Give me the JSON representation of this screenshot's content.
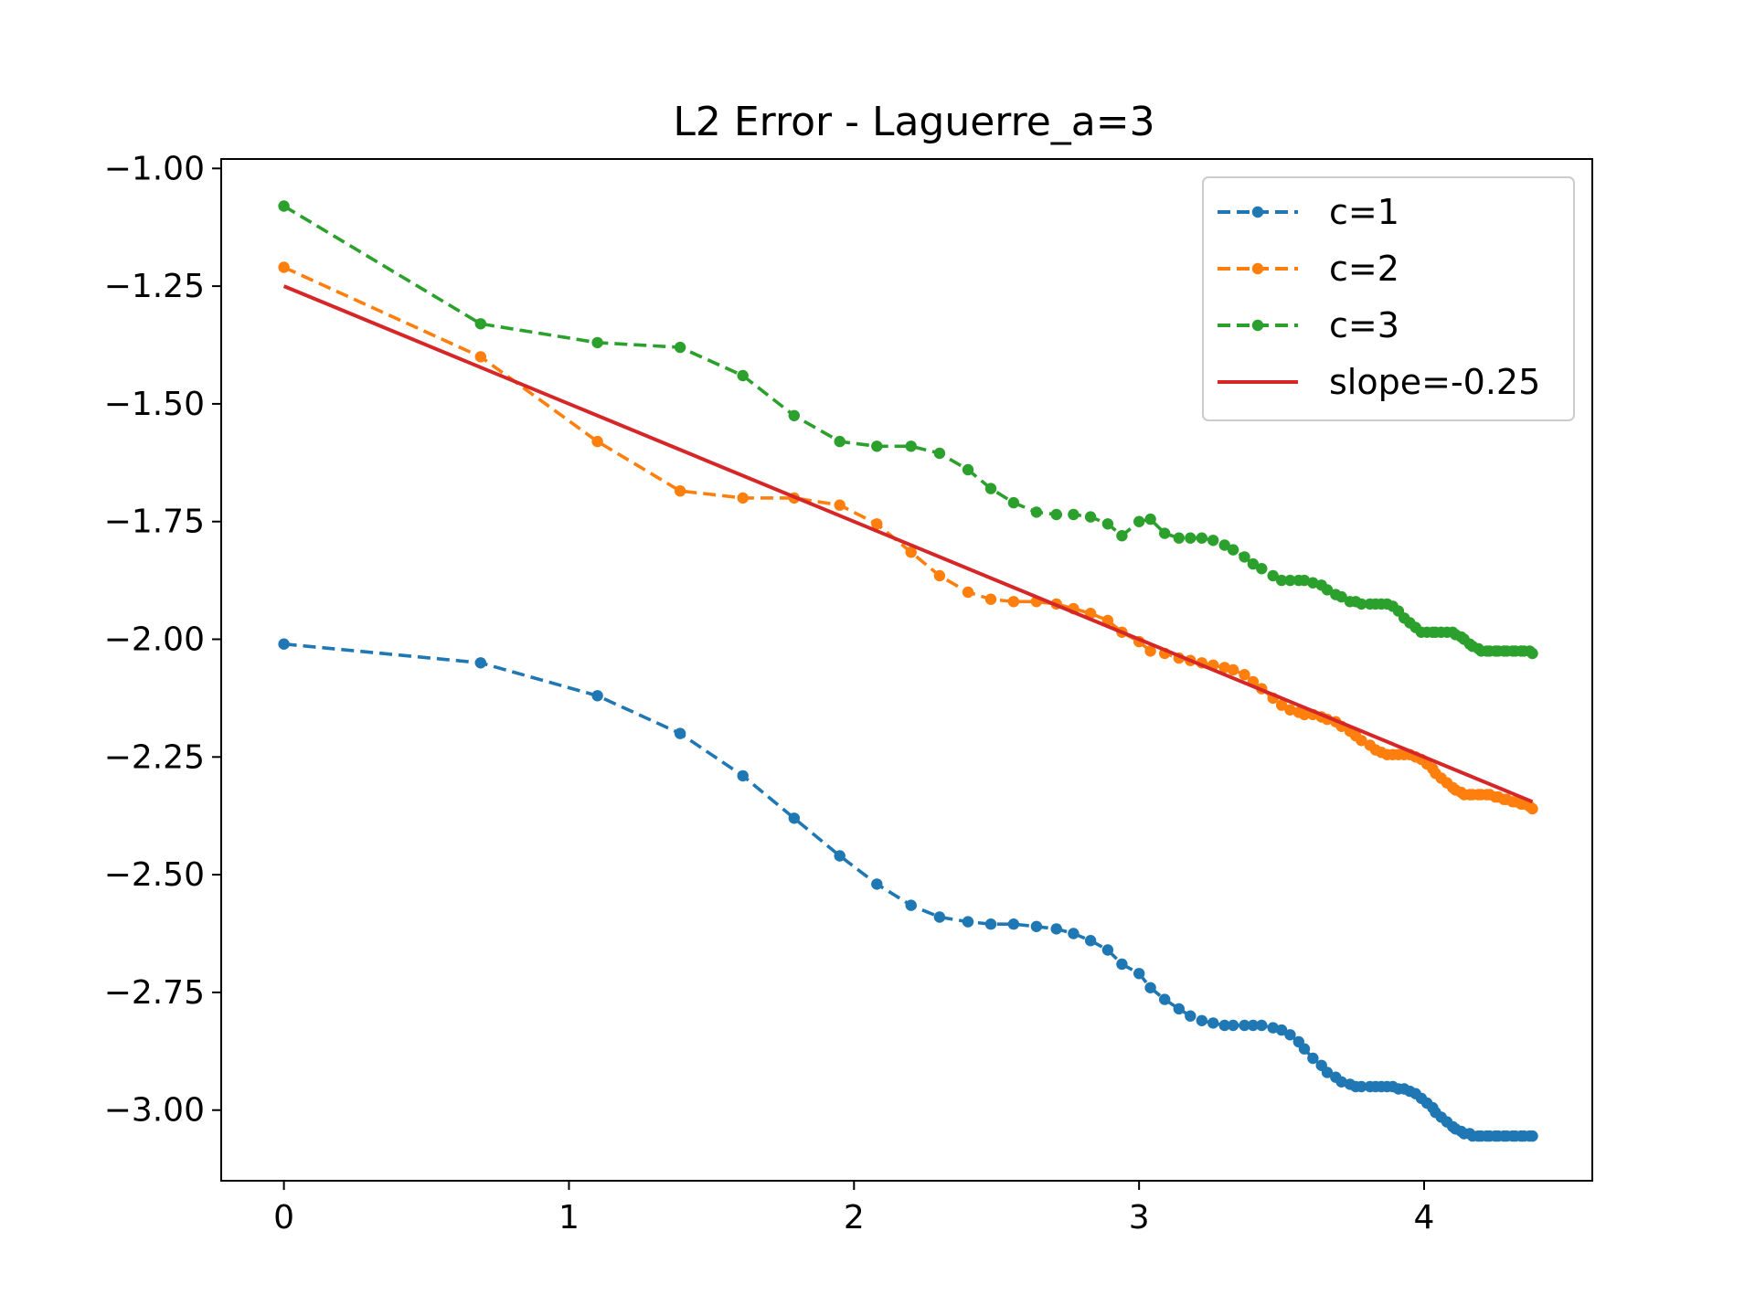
{
  "chart_data": {
    "type": "line",
    "title": "L2 Error - Laguerre_a=3",
    "xlabel": "",
    "ylabel": "",
    "xlim": [
      -0.22,
      4.59
    ],
    "ylim": [
      -3.15,
      -0.98
    ],
    "x_ticks": [
      0,
      1,
      2,
      3,
      4
    ],
    "x_tick_labels": [
      "0",
      "1",
      "2",
      "3",
      "4"
    ],
    "y_ticks": [
      -1.0,
      -1.25,
      -1.5,
      -1.75,
      -2.0,
      -2.25,
      -2.5,
      -2.75,
      -3.0
    ],
    "y_tick_labels": [
      "−1.00",
      "−1.25",
      "−1.50",
      "−1.75",
      "−2.00",
      "−2.25",
      "−2.50",
      "−2.75",
      "−3.00"
    ],
    "grid": false,
    "legend_position": "top-right",
    "series": [
      {
        "name": "c=1",
        "color": "#1f77b4",
        "style": "dashed-with-dots",
        "points": [
          [
            0.0,
            -2.01
          ],
          [
            0.69,
            -2.05
          ],
          [
            1.1,
            -2.12
          ],
          [
            1.39,
            -2.2
          ],
          [
            1.61,
            -2.29
          ],
          [
            1.79,
            -2.38
          ],
          [
            1.95,
            -2.46
          ],
          [
            2.08,
            -2.52
          ],
          [
            2.2,
            -2.565
          ],
          [
            2.3,
            -2.59
          ],
          [
            2.4,
            -2.6
          ],
          [
            2.48,
            -2.605
          ],
          [
            2.56,
            -2.605
          ],
          [
            2.64,
            -2.61
          ],
          [
            2.71,
            -2.615
          ],
          [
            2.77,
            -2.625
          ],
          [
            2.83,
            -2.64
          ],
          [
            2.89,
            -2.66
          ],
          [
            2.94,
            -2.69
          ],
          [
            3.0,
            -2.71
          ],
          [
            3.04,
            -2.74
          ],
          [
            3.09,
            -2.765
          ],
          [
            3.14,
            -2.785
          ],
          [
            3.18,
            -2.8
          ],
          [
            3.22,
            -2.81
          ],
          [
            3.26,
            -2.815
          ],
          [
            3.3,
            -2.82
          ],
          [
            3.33,
            -2.82
          ],
          [
            3.37,
            -2.82
          ],
          [
            3.4,
            -2.82
          ],
          [
            3.43,
            -2.82
          ],
          [
            3.47,
            -2.825
          ],
          [
            3.5,
            -2.83
          ],
          [
            3.53,
            -2.84
          ],
          [
            3.56,
            -2.855
          ],
          [
            3.58,
            -2.87
          ],
          [
            3.61,
            -2.89
          ],
          [
            3.64,
            -2.905
          ],
          [
            3.66,
            -2.92
          ],
          [
            3.69,
            -2.93
          ],
          [
            3.71,
            -2.94
          ],
          [
            3.74,
            -2.945
          ],
          [
            3.76,
            -2.95
          ],
          [
            3.78,
            -2.95
          ],
          [
            3.81,
            -2.95
          ],
          [
            3.83,
            -2.95
          ],
          [
            3.85,
            -2.95
          ],
          [
            3.87,
            -2.95
          ],
          [
            3.89,
            -2.95
          ],
          [
            3.91,
            -2.955
          ],
          [
            3.93,
            -2.955
          ],
          [
            3.95,
            -2.96
          ],
          [
            3.97,
            -2.965
          ],
          [
            3.99,
            -2.975
          ],
          [
            4.01,
            -2.985
          ],
          [
            4.03,
            -2.995
          ],
          [
            4.04,
            -3.005
          ],
          [
            4.06,
            -3.015
          ],
          [
            4.08,
            -3.025
          ],
          [
            4.1,
            -3.035
          ],
          [
            4.11,
            -3.04
          ],
          [
            4.13,
            -3.045
          ],
          [
            4.14,
            -3.05
          ],
          [
            4.16,
            -3.05
          ],
          [
            4.17,
            -3.055
          ],
          [
            4.19,
            -3.055
          ],
          [
            4.2,
            -3.055
          ],
          [
            4.22,
            -3.055
          ],
          [
            4.23,
            -3.055
          ],
          [
            4.25,
            -3.055
          ],
          [
            4.26,
            -3.055
          ],
          [
            4.28,
            -3.055
          ],
          [
            4.29,
            -3.055
          ],
          [
            4.31,
            -3.055
          ],
          [
            4.32,
            -3.055
          ],
          [
            4.34,
            -3.055
          ],
          [
            4.35,
            -3.055
          ],
          [
            4.37,
            -3.055
          ],
          [
            4.38,
            -3.055
          ]
        ]
      },
      {
        "name": "c=2",
        "color": "#ff7f0e",
        "style": "dashed-with-dots",
        "points": [
          [
            0.0,
            -1.21
          ],
          [
            0.69,
            -1.4
          ],
          [
            1.1,
            -1.58
          ],
          [
            1.39,
            -1.685
          ],
          [
            1.61,
            -1.7
          ],
          [
            1.79,
            -1.7
          ],
          [
            1.95,
            -1.715
          ],
          [
            2.08,
            -1.755
          ],
          [
            2.2,
            -1.815
          ],
          [
            2.3,
            -1.865
          ],
          [
            2.4,
            -1.9
          ],
          [
            2.48,
            -1.915
          ],
          [
            2.56,
            -1.92
          ],
          [
            2.64,
            -1.92
          ],
          [
            2.71,
            -1.925
          ],
          [
            2.77,
            -1.935
          ],
          [
            2.83,
            -1.945
          ],
          [
            2.89,
            -1.96
          ],
          [
            2.94,
            -1.985
          ],
          [
            3.0,
            -2.005
          ],
          [
            3.04,
            -2.025
          ],
          [
            3.09,
            -2.03
          ],
          [
            3.14,
            -2.04
          ],
          [
            3.18,
            -2.045
          ],
          [
            3.22,
            -2.05
          ],
          [
            3.26,
            -2.055
          ],
          [
            3.3,
            -2.06
          ],
          [
            3.33,
            -2.065
          ],
          [
            3.37,
            -2.075
          ],
          [
            3.4,
            -2.09
          ],
          [
            3.43,
            -2.105
          ],
          [
            3.47,
            -2.125
          ],
          [
            3.5,
            -2.14
          ],
          [
            3.53,
            -2.15
          ],
          [
            3.56,
            -2.155
          ],
          [
            3.58,
            -2.16
          ],
          [
            3.61,
            -2.16
          ],
          [
            3.64,
            -2.165
          ],
          [
            3.66,
            -2.17
          ],
          [
            3.69,
            -2.175
          ],
          [
            3.71,
            -2.185
          ],
          [
            3.74,
            -2.195
          ],
          [
            3.76,
            -2.205
          ],
          [
            3.78,
            -2.215
          ],
          [
            3.81,
            -2.225
          ],
          [
            3.83,
            -2.235
          ],
          [
            3.85,
            -2.24
          ],
          [
            3.87,
            -2.245
          ],
          [
            3.89,
            -2.245
          ],
          [
            3.91,
            -2.245
          ],
          [
            3.93,
            -2.245
          ],
          [
            3.95,
            -2.245
          ],
          [
            3.97,
            -2.25
          ],
          [
            3.99,
            -2.255
          ],
          [
            4.01,
            -2.265
          ],
          [
            4.03,
            -2.275
          ],
          [
            4.04,
            -2.285
          ],
          [
            4.06,
            -2.295
          ],
          [
            4.08,
            -2.305
          ],
          [
            4.1,
            -2.315
          ],
          [
            4.11,
            -2.32
          ],
          [
            4.13,
            -2.325
          ],
          [
            4.14,
            -2.33
          ],
          [
            4.16,
            -2.33
          ],
          [
            4.17,
            -2.33
          ],
          [
            4.19,
            -2.33
          ],
          [
            4.2,
            -2.33
          ],
          [
            4.22,
            -2.33
          ],
          [
            4.23,
            -2.33
          ],
          [
            4.25,
            -2.335
          ],
          [
            4.26,
            -2.335
          ],
          [
            4.28,
            -2.34
          ],
          [
            4.29,
            -2.34
          ],
          [
            4.31,
            -2.345
          ],
          [
            4.32,
            -2.345
          ],
          [
            4.34,
            -2.35
          ],
          [
            4.35,
            -2.35
          ],
          [
            4.37,
            -2.355
          ],
          [
            4.38,
            -2.36
          ]
        ]
      },
      {
        "name": "c=3",
        "color": "#2ca02c",
        "style": "dashed-with-dots",
        "points": [
          [
            0.0,
            -1.08
          ],
          [
            0.69,
            -1.33
          ],
          [
            1.1,
            -1.37
          ],
          [
            1.39,
            -1.38
          ],
          [
            1.61,
            -1.44
          ],
          [
            1.79,
            -1.525
          ],
          [
            1.95,
            -1.58
          ],
          [
            2.08,
            -1.59
          ],
          [
            2.2,
            -1.59
          ],
          [
            2.3,
            -1.605
          ],
          [
            2.4,
            -1.64
          ],
          [
            2.48,
            -1.68
          ],
          [
            2.56,
            -1.71
          ],
          [
            2.64,
            -1.73
          ],
          [
            2.71,
            -1.735
          ],
          [
            2.77,
            -1.735
          ],
          [
            2.83,
            -1.74
          ],
          [
            2.89,
            -1.755
          ],
          [
            2.94,
            -1.78
          ],
          [
            3.0,
            -1.75
          ],
          [
            3.04,
            -1.745
          ],
          [
            3.09,
            -1.775
          ],
          [
            3.14,
            -1.785
          ],
          [
            3.18,
            -1.785
          ],
          [
            3.22,
            -1.785
          ],
          [
            3.26,
            -1.79
          ],
          [
            3.3,
            -1.8
          ],
          [
            3.33,
            -1.81
          ],
          [
            3.37,
            -1.825
          ],
          [
            3.4,
            -1.84
          ],
          [
            3.43,
            -1.85
          ],
          [
            3.47,
            -1.865
          ],
          [
            3.5,
            -1.875
          ],
          [
            3.53,
            -1.875
          ],
          [
            3.56,
            -1.875
          ],
          [
            3.58,
            -1.875
          ],
          [
            3.61,
            -1.88
          ],
          [
            3.64,
            -1.885
          ],
          [
            3.66,
            -1.895
          ],
          [
            3.69,
            -1.905
          ],
          [
            3.71,
            -1.91
          ],
          [
            3.74,
            -1.92
          ],
          [
            3.76,
            -1.92
          ],
          [
            3.78,
            -1.925
          ],
          [
            3.81,
            -1.925
          ],
          [
            3.83,
            -1.925
          ],
          [
            3.85,
            -1.925
          ],
          [
            3.87,
            -1.925
          ],
          [
            3.89,
            -1.93
          ],
          [
            3.91,
            -1.94
          ],
          [
            3.93,
            -1.955
          ],
          [
            3.95,
            -1.965
          ],
          [
            3.97,
            -1.975
          ],
          [
            3.99,
            -1.985
          ],
          [
            4.01,
            -1.985
          ],
          [
            4.03,
            -1.985
          ],
          [
            4.04,
            -1.985
          ],
          [
            4.06,
            -1.985
          ],
          [
            4.08,
            -1.985
          ],
          [
            4.1,
            -1.985
          ],
          [
            4.11,
            -1.99
          ],
          [
            4.13,
            -1.995
          ],
          [
            4.14,
            -2.0
          ],
          [
            4.16,
            -2.01
          ],
          [
            4.17,
            -2.015
          ],
          [
            4.19,
            -2.02
          ],
          [
            4.2,
            -2.025
          ],
          [
            4.22,
            -2.025
          ],
          [
            4.23,
            -2.025
          ],
          [
            4.25,
            -2.025
          ],
          [
            4.26,
            -2.025
          ],
          [
            4.28,
            -2.025
          ],
          [
            4.29,
            -2.025
          ],
          [
            4.31,
            -2.025
          ],
          [
            4.32,
            -2.025
          ],
          [
            4.34,
            -2.025
          ],
          [
            4.35,
            -2.025
          ],
          [
            4.37,
            -2.025
          ],
          [
            4.38,
            -2.03
          ]
        ]
      },
      {
        "name": "slope=-0.25",
        "color": "#d62728",
        "style": "solid",
        "points": [
          [
            0.0,
            -1.25
          ],
          [
            4.38,
            -2.345
          ]
        ]
      }
    ]
  }
}
